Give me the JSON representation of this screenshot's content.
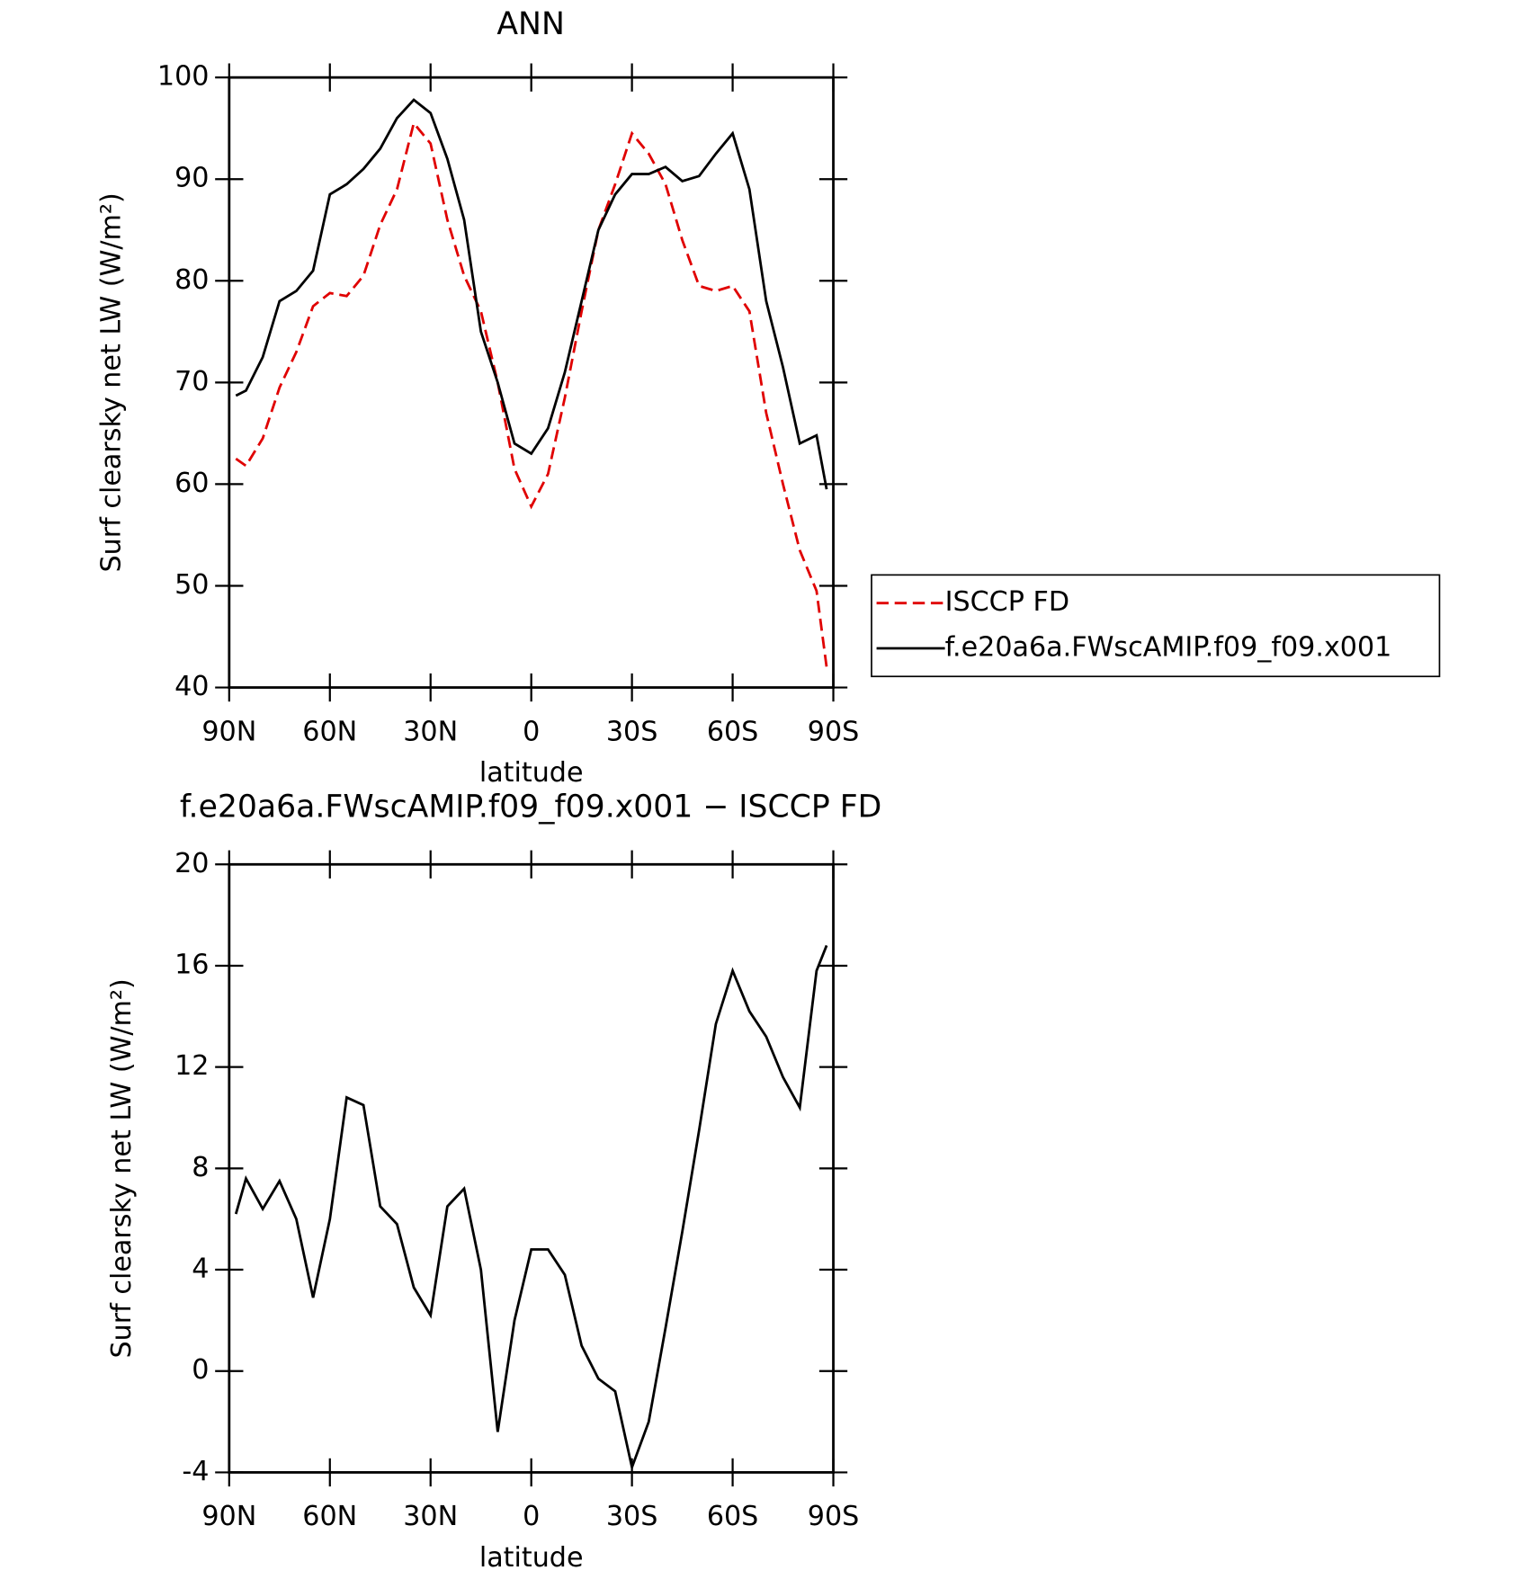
{
  "chart_data": [
    {
      "type": "line",
      "title": "ANN",
      "xlabel": "latitude",
      "ylabel": "Surf clearsky net LW (W/m²)",
      "x": [
        88,
        85,
        80,
        75,
        70,
        65,
        60,
        55,
        50,
        45,
        40,
        35,
        30,
        25,
        20,
        15,
        10,
        5,
        0,
        -5,
        -10,
        -15,
        -20,
        -25,
        -30,
        -35,
        -40,
        -45,
        -50,
        -55,
        -60,
        -65,
        -70,
        -75,
        -80,
        -85,
        -88
      ],
      "series": [
        {
          "name": "ISCCP FD",
          "color": "#e00000",
          "style": "dashed",
          "values": [
            62.5,
            61.8,
            64.5,
            69.5,
            73,
            77.5,
            78.8,
            78.5,
            80.5,
            85.5,
            89,
            95.5,
            93.5,
            86,
            80.5,
            77,
            70,
            61.5,
            57.8,
            61,
            68.5,
            77,
            85,
            89.5,
            94.5,
            92.5,
            89.5,
            84,
            79.5,
            79,
            79.5,
            77,
            67,
            60,
            53.5,
            49.5,
            42
          ]
        },
        {
          "name": "f.e20a6a.FWscAMIP.f09_f09.x001",
          "color": "#000000",
          "style": "solid",
          "values": [
            68.7,
            69.2,
            72.5,
            78,
            79,
            81,
            88.5,
            89.5,
            91,
            93,
            96,
            97.8,
            96.5,
            92,
            86,
            75,
            70,
            64,
            63,
            65.5,
            71,
            78,
            85,
            88.5,
            90.5,
            90.5,
            91.2,
            89.8,
            90.3,
            92.5,
            94.5,
            89,
            78,
            71.5,
            64,
            64.8,
            59.5
          ]
        }
      ],
      "xlim": [
        90,
        -90
      ],
      "xticks": [
        {
          "value": 90,
          "label": "90N"
        },
        {
          "value": 60,
          "label": "60N"
        },
        {
          "value": 30,
          "label": "30N"
        },
        0,
        {
          "value": -30,
          "label": "30S"
        },
        {
          "value": -60,
          "label": "60S"
        },
        {
          "value": -90,
          "label": "90S"
        }
      ],
      "ylim": [
        40,
        100
      ],
      "yticks": [
        40,
        50,
        60,
        70,
        80,
        90,
        100
      ],
      "legend": "right"
    },
    {
      "type": "line",
      "title": "f.e20a6a.FWscAMIP.f09_f09.x001 − ISCCP FD",
      "xlabel": "latitude",
      "ylabel": "Surf clearsky net LW (W/m²)",
      "x": [
        88,
        85,
        80,
        75,
        70,
        65,
        60,
        55,
        50,
        45,
        40,
        35,
        30,
        25,
        20,
        15,
        10,
        5,
        0,
        -5,
        -10,
        -15,
        -20,
        -25,
        -30,
        -35,
        -40,
        -45,
        -50,
        -55,
        -60,
        -65,
        -70,
        -75,
        -80,
        -85,
        -88
      ],
      "series": [
        {
          "color": "#000000",
          "style": "solid",
          "values": [
            6.2,
            7.6,
            6.4,
            7.5,
            6,
            2.9,
            6,
            10.8,
            10.5,
            6.5,
            5.8,
            3.3,
            2.2,
            6.5,
            7.2,
            4,
            -2.4,
            2,
            4.8,
            4.8,
            3.8,
            1,
            -0.3,
            -0.8,
            -3.8,
            -2,
            1.7,
            5.5,
            9.5,
            13.7,
            15.8,
            14.2,
            13.2,
            11.6,
            10.4,
            15.8,
            16.8
          ]
        }
      ],
      "xlim": [
        90,
        -90
      ],
      "xticks": [
        {
          "value": 90,
          "label": "90N"
        },
        {
          "value": 60,
          "label": "60N"
        },
        {
          "value": 30,
          "label": "30N"
        },
        0,
        {
          "value": -30,
          "label": "30S"
        },
        {
          "value": -60,
          "label": "60S"
        },
        {
          "value": -90,
          "label": "90S"
        }
      ],
      "ylim": [
        -4,
        20
      ],
      "yticks": [
        -4,
        0,
        4,
        8,
        12,
        16,
        20
      ]
    }
  ]
}
